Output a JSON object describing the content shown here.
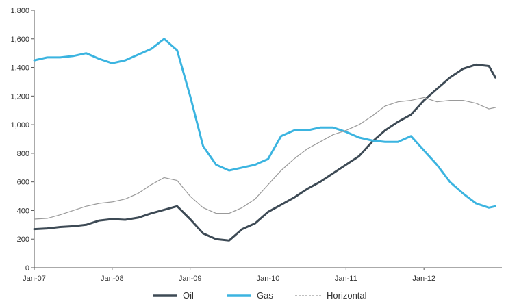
{
  "chart_data": {
    "type": "line",
    "title": "",
    "xlabel": "",
    "ylabel": "",
    "ylim": [
      0,
      1800
    ],
    "yticks": [
      0,
      200,
      400,
      600,
      800,
      1000,
      1200,
      1400,
      1600,
      1800
    ],
    "ytick_labels": [
      "0",
      "200",
      "400",
      "600",
      "800",
      "1,000",
      "1,200",
      "1,400",
      "1,600",
      "1,800"
    ],
    "xlim": [
      "2007-01",
      "2013-01"
    ],
    "xticks": [
      "2007-01",
      "2008-01",
      "2009-01",
      "2010-01",
      "2011-01",
      "2012-01"
    ],
    "xtick_labels": [
      "Jan-07",
      "Jan-08",
      "Jan-09",
      "Jan-10",
      "Jan-11",
      "Jan-12"
    ],
    "grid": false,
    "legend": "bottom-center",
    "series": [
      {
        "name": "Oil",
        "color": "#3d4a55",
        "style": "solid",
        "x": [
          "2007-01",
          "2007-03",
          "2007-05",
          "2007-07",
          "2007-09",
          "2007-11",
          "2008-01",
          "2008-03",
          "2008-05",
          "2008-07",
          "2008-09",
          "2008-11",
          "2009-01",
          "2009-03",
          "2009-05",
          "2009-07",
          "2009-09",
          "2009-11",
          "2010-01",
          "2010-03",
          "2010-05",
          "2010-07",
          "2010-09",
          "2010-11",
          "2011-01",
          "2011-03",
          "2011-05",
          "2011-07",
          "2011-09",
          "2011-11",
          "2012-01",
          "2012-03",
          "2012-05",
          "2012-07",
          "2012-09",
          "2012-11",
          "2012-12"
        ],
        "values": [
          270,
          275,
          285,
          290,
          300,
          330,
          340,
          335,
          350,
          380,
          405,
          430,
          340,
          240,
          200,
          190,
          270,
          310,
          390,
          440,
          490,
          550,
          600,
          660,
          720,
          780,
          880,
          960,
          1020,
          1070,
          1170,
          1250,
          1330,
          1390,
          1420,
          1410,
          1330
        ]
      },
      {
        "name": "Gas",
        "color": "#3bb4e0",
        "style": "solid",
        "x": [
          "2007-01",
          "2007-03",
          "2007-05",
          "2007-07",
          "2007-09",
          "2007-11",
          "2008-01",
          "2008-03",
          "2008-05",
          "2008-07",
          "2008-09",
          "2008-11",
          "2009-01",
          "2009-03",
          "2009-05",
          "2009-07",
          "2009-09",
          "2009-11",
          "2010-01",
          "2010-03",
          "2010-05",
          "2010-07",
          "2010-09",
          "2010-11",
          "2011-01",
          "2011-03",
          "2011-05",
          "2011-07",
          "2011-09",
          "2011-11",
          "2012-01",
          "2012-03",
          "2012-05",
          "2012-07",
          "2012-09",
          "2012-11",
          "2012-12"
        ],
        "values": [
          1450,
          1470,
          1470,
          1480,
          1500,
          1460,
          1430,
          1450,
          1490,
          1530,
          1600,
          1520,
          1200,
          850,
          720,
          680,
          700,
          720,
          760,
          920,
          960,
          960,
          980,
          980,
          950,
          910,
          890,
          880,
          880,
          920,
          820,
          720,
          600,
          520,
          450,
          420,
          430
        ]
      },
      {
        "name": "Horizontal",
        "color": "#9a9a9a",
        "style": "dashed",
        "x": [
          "2007-01",
          "2007-03",
          "2007-05",
          "2007-07",
          "2007-09",
          "2007-11",
          "2008-01",
          "2008-03",
          "2008-05",
          "2008-07",
          "2008-09",
          "2008-11",
          "2009-01",
          "2009-03",
          "2009-05",
          "2009-07",
          "2009-09",
          "2009-11",
          "2010-01",
          "2010-03",
          "2010-05",
          "2010-07",
          "2010-09",
          "2010-11",
          "2011-01",
          "2011-03",
          "2011-05",
          "2011-07",
          "2011-09",
          "2011-11",
          "2012-01",
          "2012-03",
          "2012-05",
          "2012-07",
          "2012-09",
          "2012-11",
          "2012-12"
        ],
        "values": [
          340,
          345,
          370,
          400,
          430,
          450,
          460,
          480,
          520,
          580,
          630,
          610,
          500,
          420,
          380,
          380,
          420,
          480,
          580,
          680,
          760,
          830,
          880,
          930,
          960,
          1000,
          1060,
          1130,
          1160,
          1170,
          1190,
          1160,
          1170,
          1170,
          1150,
          1110,
          1120
        ]
      }
    ]
  }
}
